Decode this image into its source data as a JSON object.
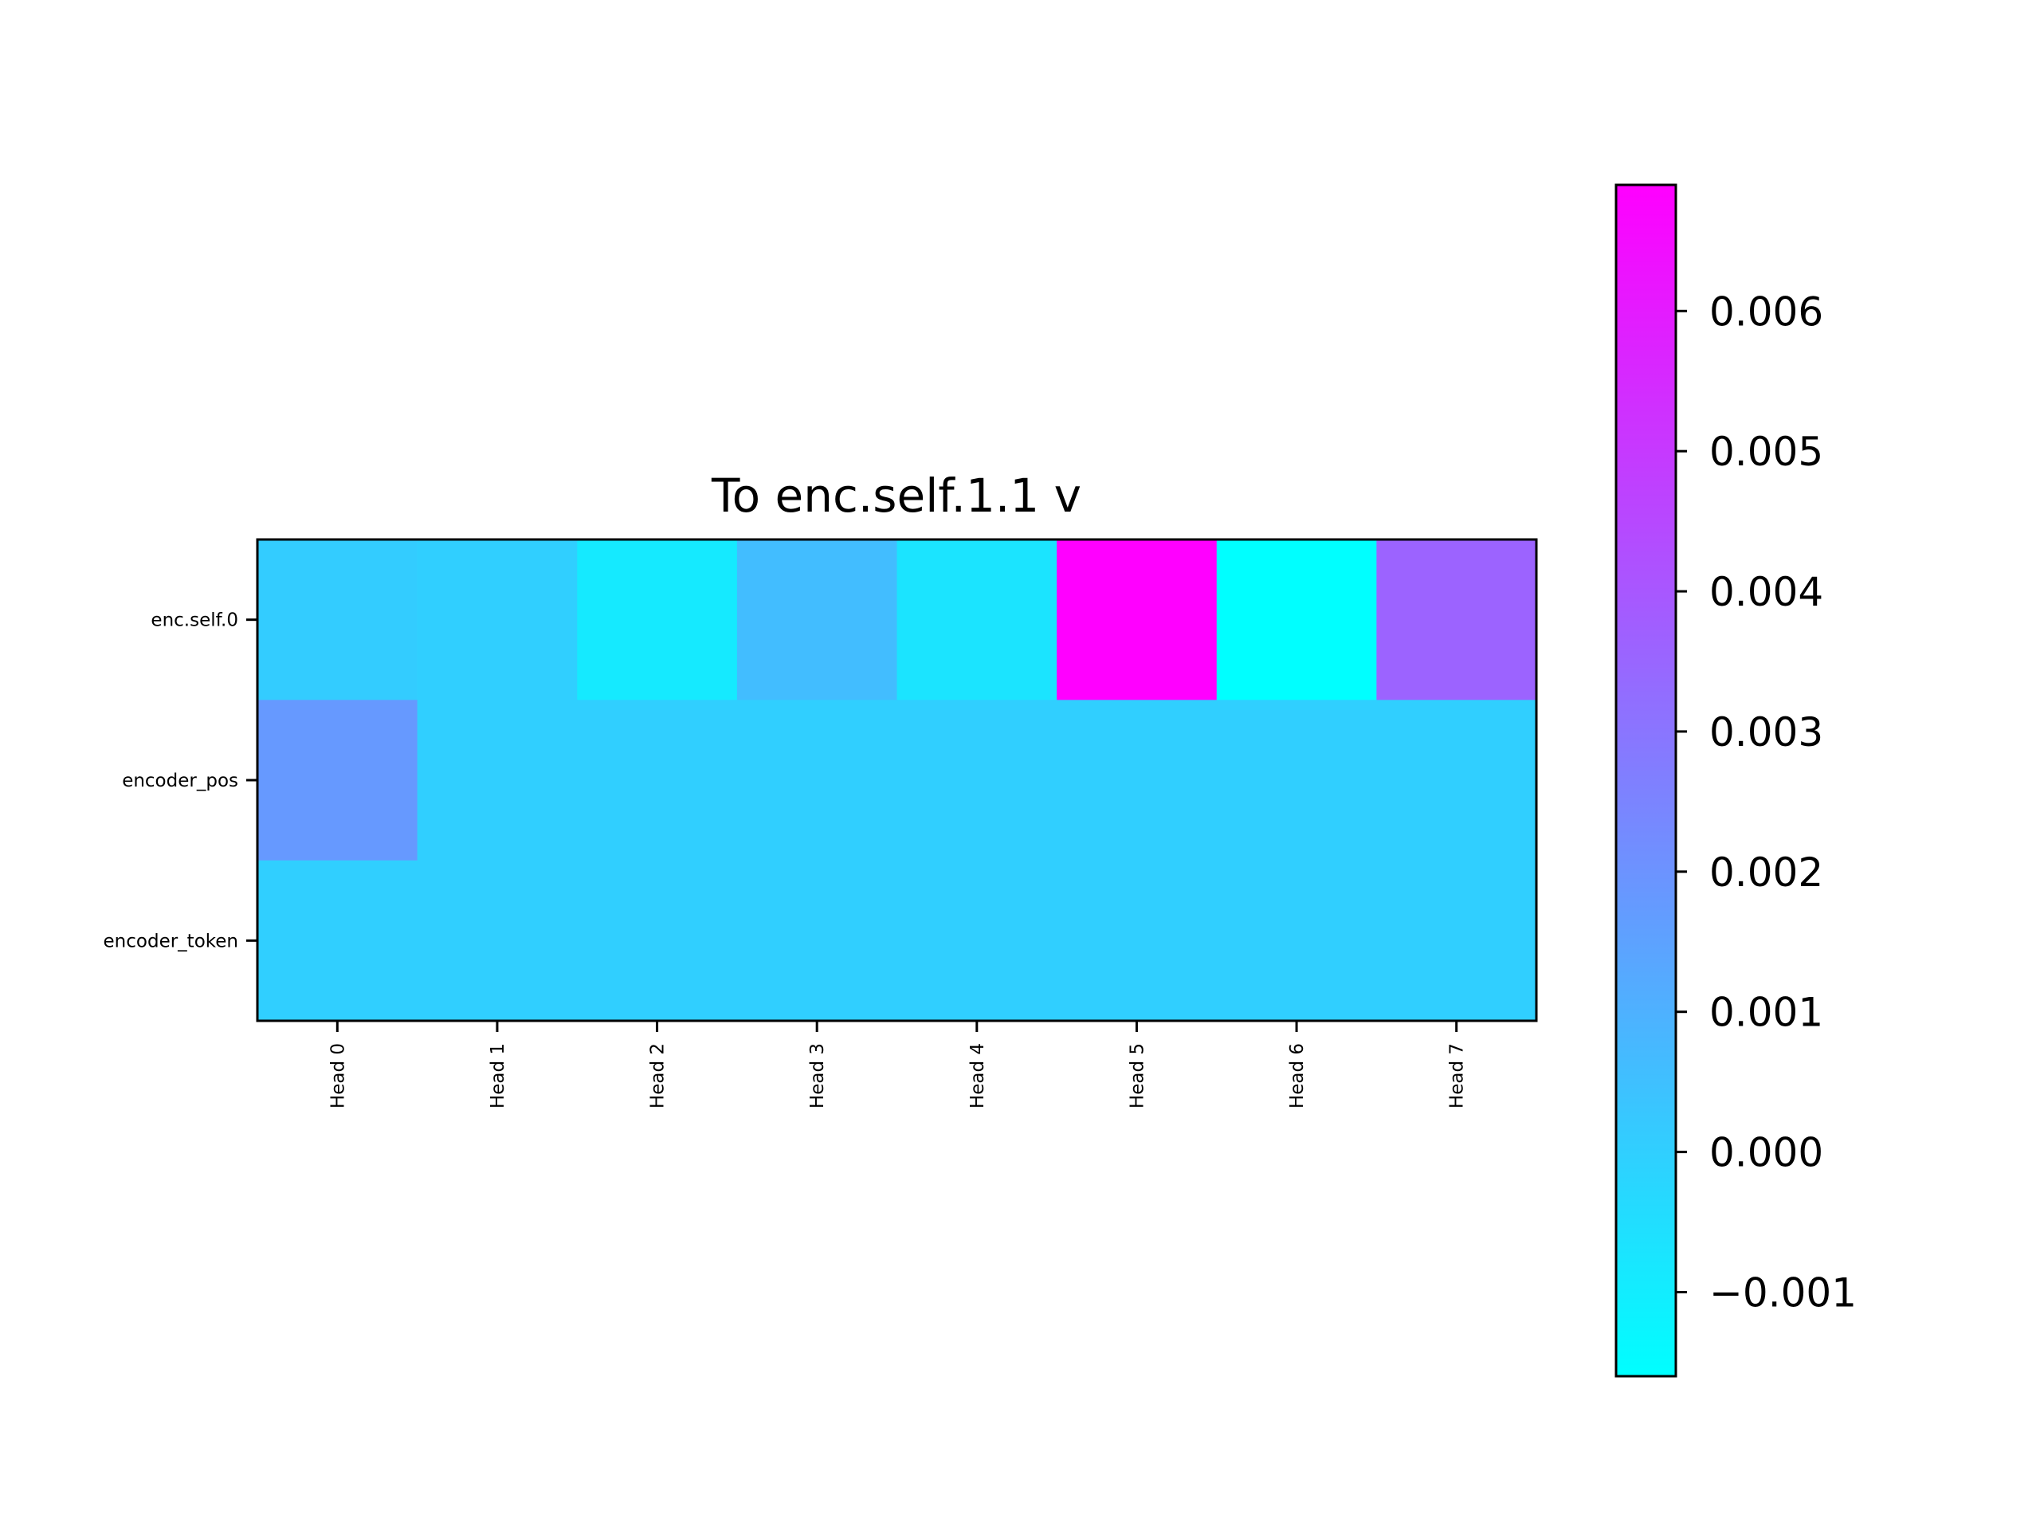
{
  "chart_data": {
    "type": "heatmap",
    "title": "To enc.self.1.1 v",
    "xlabel": "",
    "ylabel": "",
    "x_categories": [
      "Head 0",
      "Head 1",
      "Head 2",
      "Head 3",
      "Head 4",
      "Head 5",
      "Head 6",
      "Head 7"
    ],
    "y_categories": [
      "enc.self.0",
      "encoder_pos",
      "encoder_token"
    ],
    "values": [
      [
        0.0001,
        0.0,
        -0.0009,
        0.0006,
        -0.0007,
        0.0069,
        -0.0016,
        0.0036
      ],
      [
        0.0018,
        0.0,
        0.0,
        0.0,
        0.0,
        0.0,
        0.0,
        0.0
      ],
      [
        0.0,
        0.0,
        0.0,
        0.0,
        0.0,
        0.0,
        0.0,
        0.0
      ]
    ],
    "colormap": "cool",
    "colorbar": {
      "vmin": -0.0016,
      "vmax": 0.0069,
      "ticks": [
        -0.001,
        0.0,
        0.001,
        0.002,
        0.003,
        0.004,
        0.005,
        0.006
      ],
      "tick_labels": [
        "−0.001",
        "0.000",
        "0.001",
        "0.002",
        "0.003",
        "0.004",
        "0.005",
        "0.006"
      ]
    },
    "grid": false
  }
}
